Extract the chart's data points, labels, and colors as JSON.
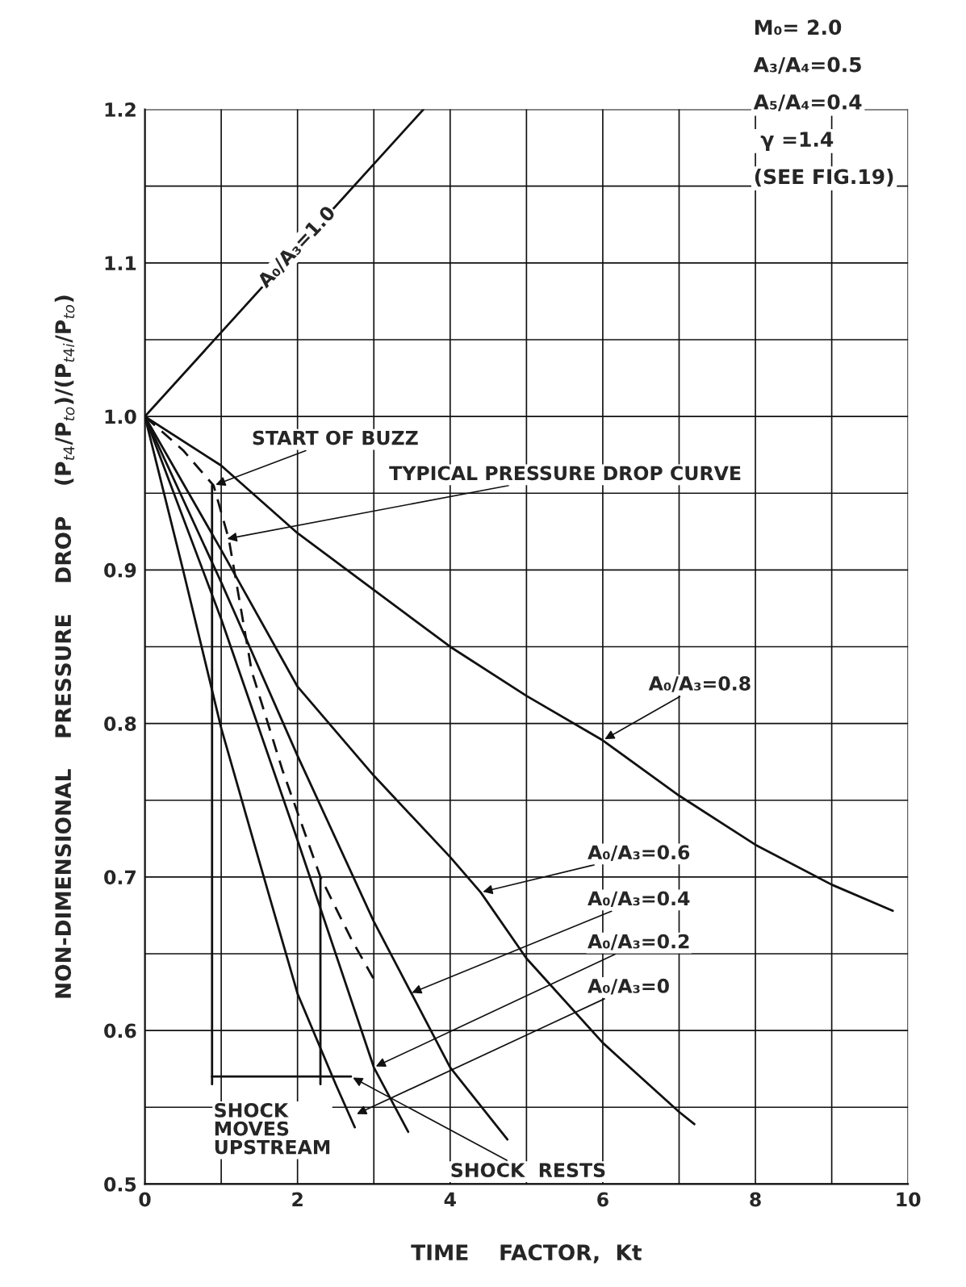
{
  "chart_data": {
    "type": "line",
    "xlabel": "TIME    FACTOR,  Kt",
    "ylabel": "NON-DIMENSIONAL    PRESSURE    DROP    (P$_{t4}$/P$_{to}$)/(P$_{t4i}$/P$_{to}$)",
    "xlim": [
      0,
      10
    ],
    "ylim": [
      0.5,
      1.2
    ],
    "xticks": [
      0,
      {
        "value": 1,
        "label": null
      },
      2,
      {
        "value": 3,
        "label": null
      },
      4,
      {
        "value": 5,
        "label": null
      },
      6,
      {
        "value": 7,
        "label": null
      },
      8,
      {
        "value": 9,
        "label": null
      },
      10
    ],
    "yticks": [
      0.5,
      {
        "value": 0.55,
        "label": null
      },
      0.6,
      {
        "value": 0.65,
        "label": null
      },
      0.7,
      {
        "value": 0.75,
        "label": null
      },
      0.8,
      {
        "value": 0.85,
        "label": null
      },
      0.9,
      {
        "value": 0.95,
        "label": null
      },
      {
        "value": 1.0,
        "label": "1.0"
      },
      {
        "value": 1.05,
        "label": null
      },
      1.1,
      {
        "value": 1.15,
        "label": null
      },
      1.2
    ],
    "grid": true,
    "legend": false,
    "marker": "none",
    "series": [
      {
        "color": "#111111",
        "x": [
          0,
          3.65
        ],
        "values": [
          1.0,
          1.2
        ]
      },
      {
        "color": "#111111",
        "x": [
          0,
          1,
          2,
          3,
          4,
          5,
          6,
          7,
          8,
          9,
          9.8
        ],
        "values": [
          1.0,
          0.968,
          0.924,
          0.887,
          0.85,
          0.818,
          0.789,
          0.753,
          0.721,
          0.695,
          0.678
        ]
      },
      {
        "color": "#111111",
        "x": [
          0,
          1,
          2,
          3,
          4,
          4.4,
          5,
          6,
          7,
          7.2
        ],
        "values": [
          1.0,
          0.913,
          0.824,
          0.766,
          0.713,
          0.69,
          0.647,
          0.592,
          0.547,
          0.539
        ]
      },
      {
        "color": "#111111",
        "x": [
          0,
          1,
          2,
          3,
          4,
          4.75
        ],
        "values": [
          1.0,
          0.892,
          0.779,
          0.671,
          0.576,
          0.529
        ]
      },
      {
        "color": "#111111",
        "x": [
          0,
          1,
          2,
          3,
          3.45
        ],
        "values": [
          1.0,
          0.868,
          0.724,
          0.576,
          0.534
        ]
      },
      {
        "color": "#111111",
        "x": [
          0,
          0.5,
          1,
          1.5,
          2,
          2.5,
          2.75
        ],
        "values": [
          1.0,
          0.9,
          0.797,
          0.71,
          0.624,
          0.565,
          0.537
        ]
      },
      {
        "color": "#111111",
        "line_style": "dashed",
        "x": [
          0,
          0.5,
          0.9,
          1.1,
          1.4,
          1.8,
          2.3,
          2.7,
          3.05
        ],
        "values": [
          1.0,
          0.978,
          0.955,
          0.92,
          0.834,
          0.77,
          0.7,
          0.66,
          0.629
        ]
      },
      {
        "color": "#111111",
        "x": [
          0.88,
          0.88
        ],
        "values": [
          0.955,
          0.565
        ]
      },
      {
        "color": "#111111",
        "x": [
          2.3,
          2.3
        ],
        "values": [
          0.7,
          0.565
        ]
      },
      {
        "color": "#111111",
        "x": [
          0.88,
          2.7
        ],
        "values": [
          0.57,
          0.57
        ]
      }
    ],
    "annotations": [
      {
        "text": "A₀/A₃=1.0",
        "x": 2.0,
        "y": 1.11
      },
      {
        "text": "START OF BUZZ",
        "x": 0.9,
        "y": 0.955
      },
      {
        "text": "TYPICAL PRESSURE DROP CURVE",
        "x": 1.05,
        "y": 0.92
      },
      {
        "text": "A₀/A₃=0.8",
        "x": 6,
        "y": 0.789
      },
      {
        "text": "A₀/A₃=0.6",
        "x": 4.4,
        "y": 0.69
      },
      {
        "text": "A₀/A₃=0.4",
        "x": 3.47,
        "y": 0.624
      },
      {
        "text": "A₀/A₃=0.2",
        "x": 3.0,
        "y": 0.576
      },
      {
        "text": "A₀/A₃=0",
        "x": 2.75,
        "y": 0.545
      },
      {
        "text": "SHOCK  RESTS",
        "x": 2.7,
        "y": 0.57
      },
      "SHOCK\nMOVES\nUPSTREAM",
      "M₀= 2.0",
      "A₃/A₄=0.5",
      "A₅/A₄=0.4",
      " γ =1.4",
      "(SEE FIG.19)"
    ]
  }
}
